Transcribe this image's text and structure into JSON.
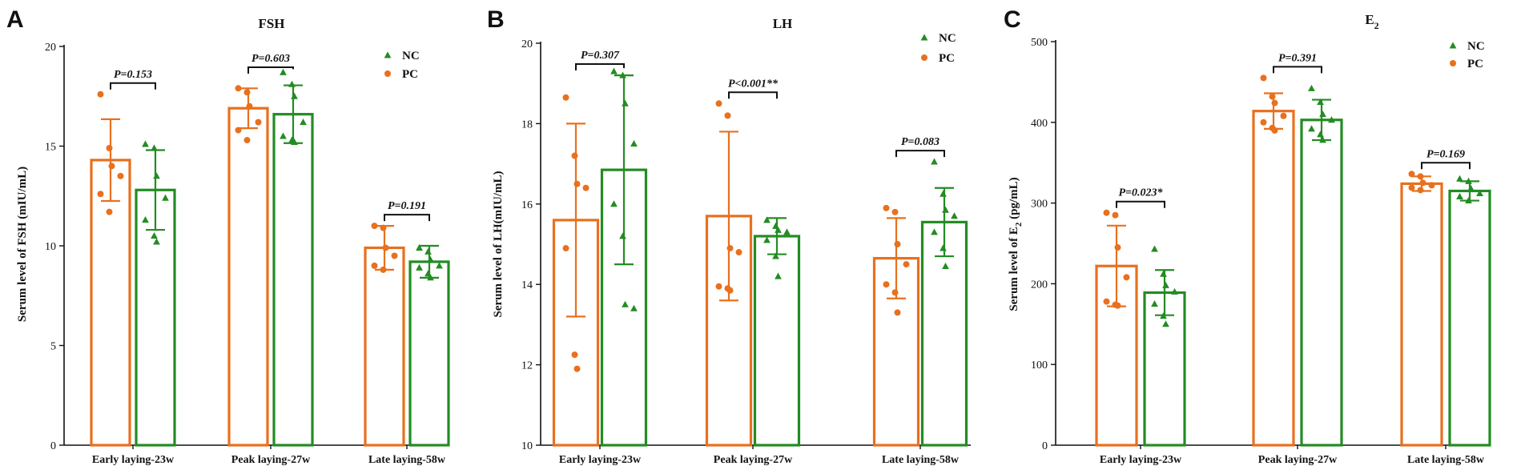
{
  "colors": {
    "PC": "#E8701E",
    "NC": "#238C23",
    "axis": "#111111"
  },
  "legend": [
    {
      "key": "NC",
      "label": "NC",
      "marker": "triangle"
    },
    {
      "key": "PC",
      "label": "PC",
      "marker": "circle"
    }
  ],
  "chart_data": [
    {
      "panel": "A",
      "type": "bar",
      "title": "FSH",
      "ylabel": "Serum level of FSH (mIU/mL)",
      "ylim": [
        0,
        20
      ],
      "yticks": [
        0,
        5,
        10,
        15,
        20
      ],
      "categories": [
        "Early laying-23w",
        "Peak laying-27w",
        "Late laying-58w"
      ],
      "series": [
        {
          "name": "PC",
          "values": [
            14.3,
            16.9,
            9.9
          ],
          "sd": [
            2.05,
            1.0,
            1.1
          ],
          "points": [
            [
              17.6,
              14.9,
              14.0,
              13.5,
              12.6,
              11.7
            ],
            [
              17.9,
              17.7,
              17.0,
              16.2,
              15.8,
              15.3
            ],
            [
              11.0,
              10.9,
              9.9,
              9.5,
              9.0,
              8.8
            ]
          ]
        },
        {
          "name": "NC",
          "values": [
            12.8,
            16.6,
            9.2
          ],
          "sd": [
            2.0,
            1.45,
            0.8
          ],
          "points": [
            [
              15.1,
              14.9,
              13.5,
              12.4,
              11.3,
              10.5,
              10.2
            ],
            [
              18.7,
              18.1,
              17.5,
              16.2,
              15.5,
              15.3,
              15.2
            ],
            [
              9.9,
              9.7,
              9.3,
              9.0,
              8.9,
              8.6,
              8.4
            ]
          ]
        }
      ],
      "pvalues": [
        "P=0.153",
        "P=0.603",
        "P=0.191"
      ]
    },
    {
      "panel": "B",
      "type": "bar",
      "title": "LH",
      "ylabel": "Serum level of LH(mIU/mL)",
      "ylim": [
        10,
        20
      ],
      "yticks": [
        10,
        12,
        14,
        16,
        18,
        20
      ],
      "categories": [
        "Early laying-23w",
        "Peak laying-27w",
        "Late laying-58w"
      ],
      "series": [
        {
          "name": "PC",
          "values": [
            15.6,
            15.7,
            14.65
          ],
          "sd": [
            2.4,
            2.1,
            1.0
          ],
          "points": [
            [
              18.65,
              17.2,
              16.5,
              16.4,
              14.9,
              12.25,
              11.9
            ],
            [
              18.5,
              18.2,
              14.9,
              14.8,
              13.95,
              13.9,
              13.85
            ],
            [
              15.9,
              15.8,
              15.0,
              14.5,
              14.0,
              13.8,
              13.3
            ]
          ]
        },
        {
          "name": "NC",
          "values": [
            16.85,
            15.2,
            15.55
          ],
          "sd": [
            2.35,
            0.45,
            0.85
          ],
          "points": [
            [
              19.3,
              19.2,
              18.5,
              17.5,
              16.0,
              15.2,
              13.5,
              13.4
            ],
            [
              15.6,
              15.45,
              15.35,
              15.3,
              15.1,
              14.7,
              14.2
            ],
            [
              17.05,
              16.25,
              15.85,
              15.7,
              15.3,
              14.9,
              14.45
            ]
          ]
        }
      ],
      "pvalues": [
        "P=0.307",
        "P<0.001**",
        "P=0.083"
      ]
    },
    {
      "panel": "C",
      "type": "bar",
      "title": "E2",
      "title_main": "E",
      "title_sub": "2",
      "ylabel": "Serum level of E2 (pg/mL)",
      "ylabel_parts": [
        "Serum level of E",
        "2",
        " (pg/mL)"
      ],
      "ylim": [
        0,
        500
      ],
      "yticks": [
        0,
        100,
        200,
        300,
        400,
        500
      ],
      "categories": [
        "Early laying-23w",
        "Peak laying-27w",
        "Late laying-58w"
      ],
      "series": [
        {
          "name": "PC",
          "values": [
            222,
            414,
            324
          ],
          "sd": [
            50,
            22,
            9
          ],
          "points": [
            [
              288,
              285,
              245,
              208,
              178,
              174,
              173
            ],
            [
              455,
              432,
              424,
              408,
              400,
              393,
              390
            ],
            [
              336,
              333,
              325,
              322,
              319,
              316
            ]
          ]
        },
        {
          "name": "NC",
          "values": [
            189,
            403,
            315
          ],
          "sd": [
            28,
            25,
            12
          ],
          "points": [
            [
              243,
              212,
              198,
              190,
              175,
              160,
              150
            ],
            [
              442,
              425,
              410,
              403,
              392,
              385,
              378
            ],
            [
              330,
              327,
              318,
              312,
              308,
              303
            ]
          ]
        }
      ],
      "pvalues": [
        "P=0.023*",
        "P=0.391",
        "P=0.169"
      ]
    }
  ]
}
